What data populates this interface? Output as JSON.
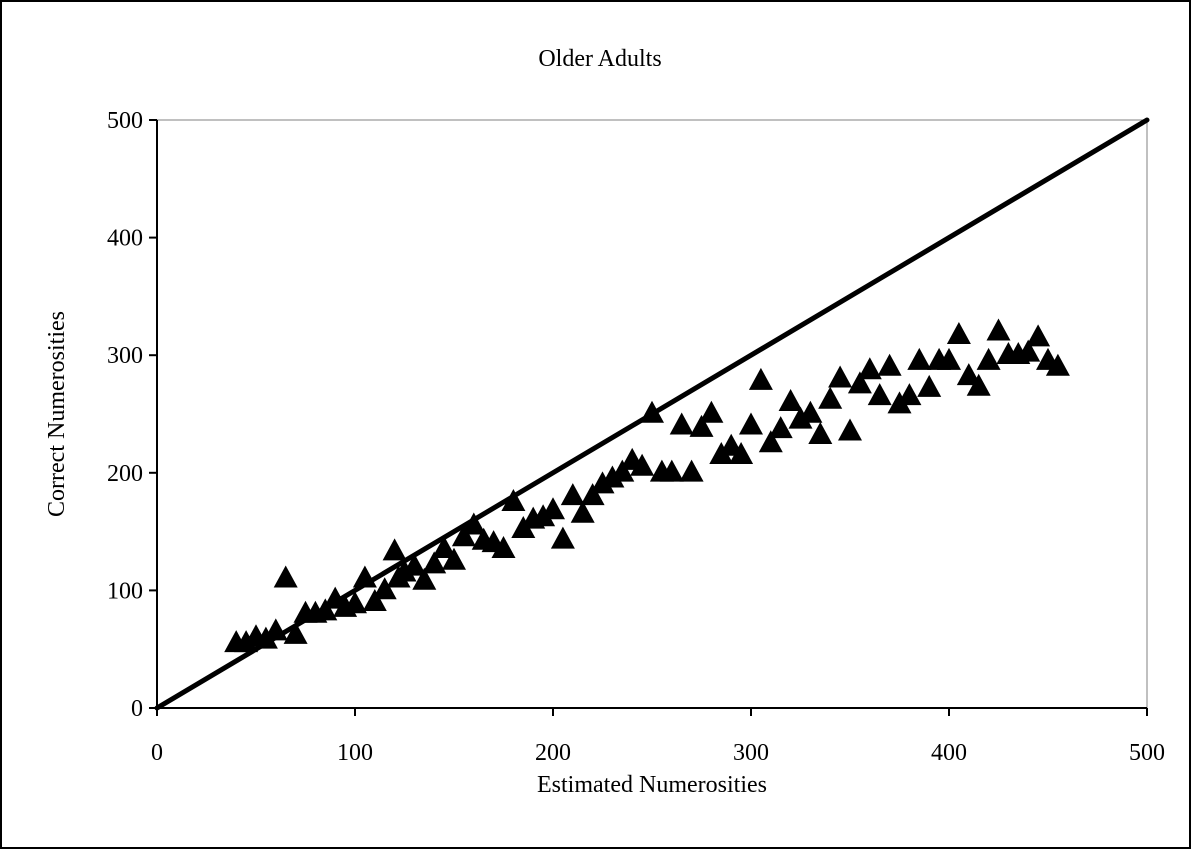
{
  "chart_data": {
    "type": "scatter",
    "title": "Older Adults",
    "xlabel": "Estimated Numerosities",
    "ylabel": "Correct Numerosities",
    "xlim": [
      0,
      500
    ],
    "ylim": [
      0,
      500
    ],
    "x_ticks": [
      "0",
      "100",
      "200",
      "300",
      "400",
      "500"
    ],
    "y_ticks": [
      "0",
      "100",
      "200",
      "300",
      "400",
      "500"
    ],
    "grid": false,
    "legend": "none",
    "marker_color": "#000000",
    "reference_line": {
      "x": [
        0,
        500
      ],
      "y": [
        0,
        500
      ]
    },
    "series": [
      {
        "marker": "triangle",
        "points": [
          [
            40,
            55
          ],
          [
            45,
            55
          ],
          [
            50,
            60
          ],
          [
            55,
            58
          ],
          [
            60,
            65
          ],
          [
            65,
            110
          ],
          [
            70,
            62
          ],
          [
            75,
            80
          ],
          [
            80,
            80
          ],
          [
            85,
            82
          ],
          [
            90,
            92
          ],
          [
            95,
            85
          ],
          [
            100,
            88
          ],
          [
            105,
            110
          ],
          [
            110,
            90
          ],
          [
            115,
            100
          ],
          [
            120,
            133
          ],
          [
            122,
            110
          ],
          [
            125,
            115
          ],
          [
            130,
            120
          ],
          [
            135,
            108
          ],
          [
            140,
            122
          ],
          [
            145,
            135
          ],
          [
            150,
            125
          ],
          [
            155,
            145
          ],
          [
            160,
            155
          ],
          [
            165,
            142
          ],
          [
            170,
            140
          ],
          [
            175,
            135
          ],
          [
            180,
            175
          ],
          [
            185,
            152
          ],
          [
            190,
            160
          ],
          [
            195,
            162
          ],
          [
            200,
            168
          ],
          [
            205,
            143
          ],
          [
            210,
            180
          ],
          [
            215,
            165
          ],
          [
            220,
            180
          ],
          [
            225,
            190
          ],
          [
            230,
            195
          ],
          [
            235,
            200
          ],
          [
            240,
            210
          ],
          [
            245,
            205
          ],
          [
            250,
            250
          ],
          [
            255,
            200
          ],
          [
            260,
            200
          ],
          [
            265,
            240
          ],
          [
            270,
            200
          ],
          [
            275,
            238
          ],
          [
            280,
            250
          ],
          [
            285,
            215
          ],
          [
            290,
            222
          ],
          [
            295,
            215
          ],
          [
            300,
            240
          ],
          [
            305,
            278
          ],
          [
            310,
            225
          ],
          [
            315,
            237
          ],
          [
            320,
            260
          ],
          [
            325,
            245
          ],
          [
            330,
            250
          ],
          [
            335,
            232
          ],
          [
            340,
            262
          ],
          [
            345,
            280
          ],
          [
            350,
            235
          ],
          [
            355,
            275
          ],
          [
            360,
            287
          ],
          [
            365,
            265
          ],
          [
            370,
            290
          ],
          [
            375,
            258
          ],
          [
            380,
            265
          ],
          [
            385,
            295
          ],
          [
            390,
            272
          ],
          [
            395,
            295
          ],
          [
            400,
            295
          ],
          [
            405,
            317
          ],
          [
            410,
            282
          ],
          [
            415,
            273
          ],
          [
            420,
            295
          ],
          [
            425,
            320
          ],
          [
            430,
            300
          ],
          [
            435,
            300
          ],
          [
            440,
            302
          ],
          [
            445,
            315
          ],
          [
            450,
            295
          ],
          [
            455,
            290
          ]
        ]
      }
    ]
  }
}
